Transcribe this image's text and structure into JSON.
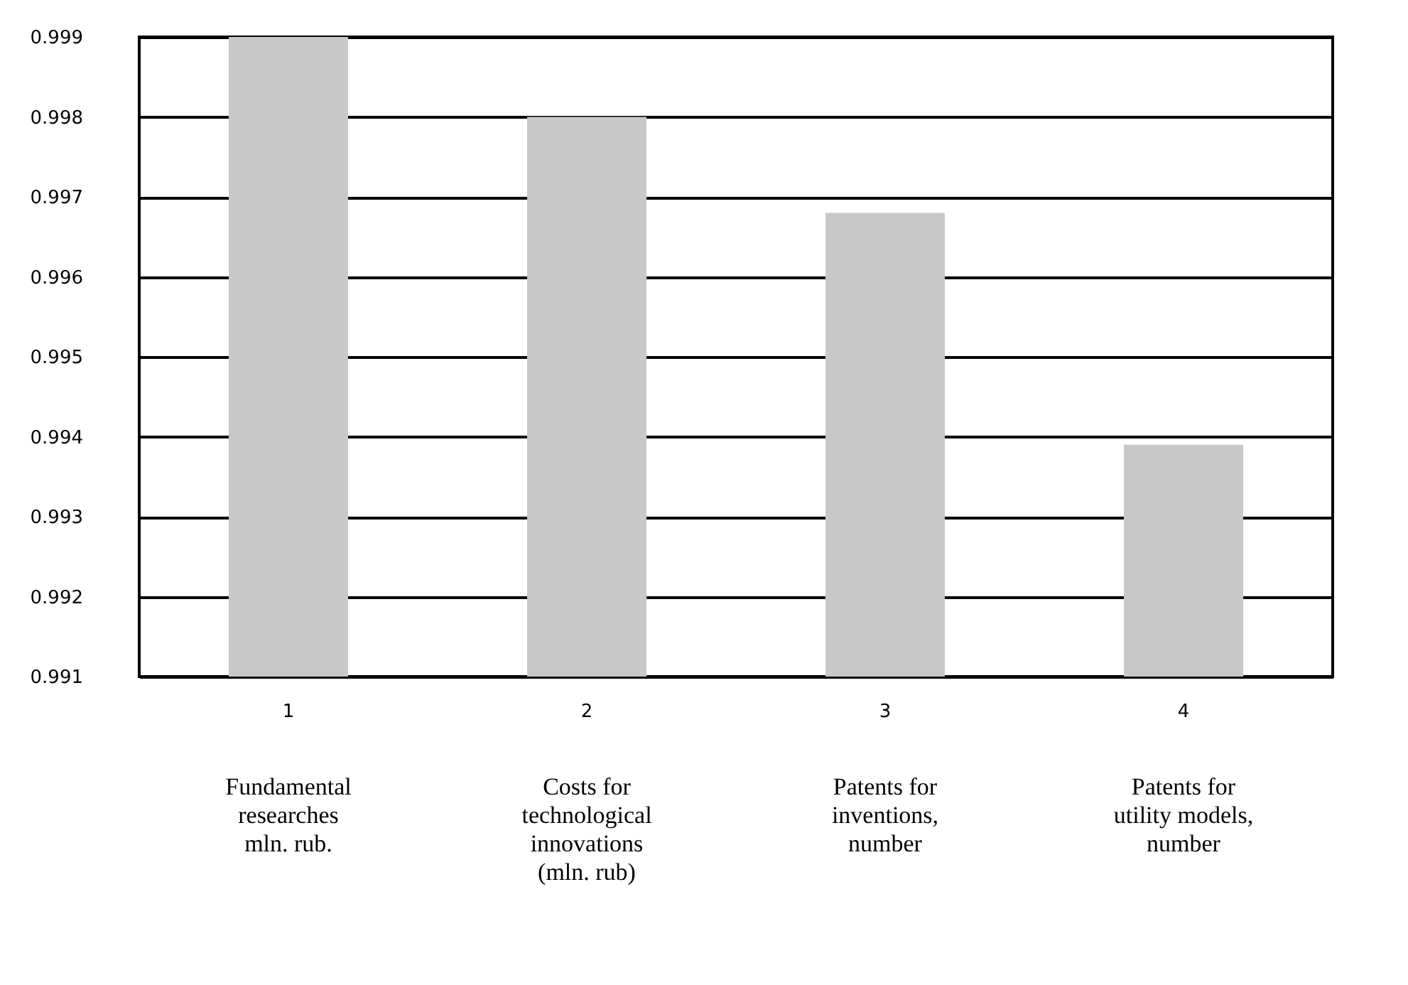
{
  "chart_data": {
    "type": "bar",
    "categories": [
      "1",
      "2",
      "3",
      "4"
    ],
    "values": [
      0.999,
      0.998,
      0.9968,
      0.9939
    ],
    "color": "#c8c8c8",
    "ylim": [
      0.991,
      0.999
    ],
    "yticks": [
      0.991,
      0.992,
      0.993,
      0.994,
      0.995,
      0.996,
      0.997,
      0.998,
      0.999
    ],
    "grid": "y",
    "annotations": [
      "Fundamental\nresearches\nmln. rub.",
      "Costs for\ntechnological\ninnovations\n(mln. rub)",
      "Patents for\ninventions,\nnumber",
      "Patents for\nutility models,\nnumber"
    ]
  }
}
